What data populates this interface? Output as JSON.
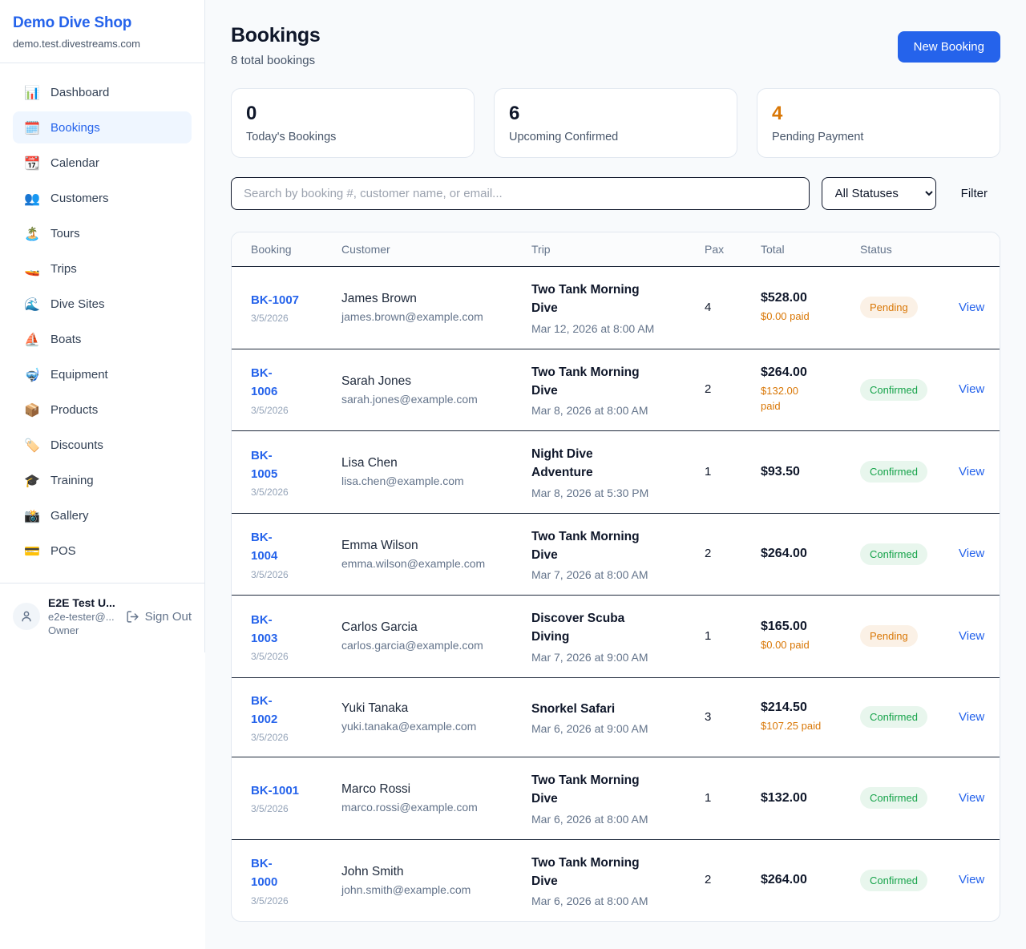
{
  "colors": {
    "accent_blue": "#2563eb",
    "pending_orange": "#d97706",
    "pending_badge_bg": "#fbf1e6",
    "confirmed_green": "#16a34a",
    "confirmed_badge_bg": "#e8f6ed",
    "main_background": "#f8fafc"
  },
  "sidebar": {
    "brand": {
      "name": "Demo Dive Shop",
      "domain": "demo.test.divestreams.com"
    },
    "items": [
      {
        "icon_name": "dashboard-icon",
        "icon": "📊",
        "label": "Dashboard",
        "active": false
      },
      {
        "icon_name": "bookings-icon",
        "icon": "🗓️",
        "label": "Bookings",
        "active": true
      },
      {
        "icon_name": "calendar-icon",
        "icon": "📆",
        "label": "Calendar",
        "active": false
      },
      {
        "icon_name": "customers-icon",
        "icon": "👥",
        "label": "Customers",
        "active": false
      },
      {
        "icon_name": "tours-icon",
        "icon": "🏝️",
        "label": "Tours",
        "active": false
      },
      {
        "icon_name": "trips-icon",
        "icon": "🚤",
        "label": "Trips",
        "active": false
      },
      {
        "icon_name": "dive-sites-icon",
        "icon": "🌊",
        "label": "Dive Sites",
        "active": false
      },
      {
        "icon_name": "boats-icon",
        "icon": "⛵",
        "label": "Boats",
        "active": false
      },
      {
        "icon_name": "equipment-icon",
        "icon": "🤿",
        "label": "Equipment",
        "active": false
      },
      {
        "icon_name": "products-icon",
        "icon": "📦",
        "label": "Products",
        "active": false
      },
      {
        "icon_name": "discounts-icon",
        "icon": "🏷️",
        "label": "Discounts",
        "active": false
      },
      {
        "icon_name": "training-icon",
        "icon": "🎓",
        "label": "Training",
        "active": false
      },
      {
        "icon_name": "gallery-icon",
        "icon": "📸",
        "label": "Gallery",
        "active": false
      },
      {
        "icon_name": "pos-icon",
        "icon": "💳",
        "label": "POS",
        "active": false
      }
    ],
    "user": {
      "name": "E2E Test U...",
      "email": "e2e-tester@...",
      "role": "Owner",
      "sign_out_label": "Sign Out"
    }
  },
  "header": {
    "title": "Bookings",
    "subtitle": "8 total bookings",
    "new_booking_label": "New Booking"
  },
  "stats": [
    {
      "value": "0",
      "label": "Today's Bookings",
      "highlight": false
    },
    {
      "value": "6",
      "label": "Upcoming Confirmed",
      "highlight": false
    },
    {
      "value": "4",
      "label": "Pending Payment",
      "highlight": true
    }
  ],
  "filters": {
    "search_placeholder": "Search by booking #, customer name, or email...",
    "status_selected": "All Statuses",
    "filter_label": "Filter"
  },
  "table": {
    "columns": [
      "Booking",
      "Customer",
      "Trip",
      "Pax",
      "Total",
      "Status",
      ""
    ],
    "rows": [
      {
        "id": "BK-1007",
        "id_display": "BK-1007",
        "date": "3/5/2026",
        "customer": "James Brown",
        "email": "james.brown@example.com",
        "trip": "Two Tank Morning Dive",
        "trip_datetime": "Mar 12, 2026 at 8:00 AM",
        "pax": "4",
        "total": "$528.00",
        "paid": "$0.00 paid",
        "status": "Pending",
        "view_label": "View"
      },
      {
        "id": "BK-1006",
        "id_display": "BK-\n1006",
        "date": "3/5/2026",
        "customer": "Sarah Jones",
        "email": "sarah.jones@example.com",
        "trip": "Two Tank Morning Dive",
        "trip_datetime": "Mar 8, 2026 at 8:00 AM",
        "pax": "2",
        "total": "$264.00",
        "paid": "$132.00\npaid",
        "status": "Confirmed",
        "view_label": "View"
      },
      {
        "id": "BK-1005",
        "id_display": "BK-\n1005",
        "date": "3/5/2026",
        "customer": "Lisa Chen",
        "email": "lisa.chen@example.com",
        "trip": "Night Dive Adventure",
        "trip_datetime": "Mar 8, 2026 at 5:30 PM",
        "pax": "1",
        "total": "$93.50",
        "paid": "",
        "status": "Confirmed",
        "view_label": "View"
      },
      {
        "id": "BK-1004",
        "id_display": "BK-\n1004",
        "date": "3/5/2026",
        "customer": "Emma Wilson",
        "email": "emma.wilson@example.com",
        "trip": "Two Tank Morning Dive",
        "trip_datetime": "Mar 7, 2026 at 8:00 AM",
        "pax": "2",
        "total": "$264.00",
        "paid": "",
        "status": "Confirmed",
        "view_label": "View"
      },
      {
        "id": "BK-1003",
        "id_display": "BK-\n1003",
        "date": "3/5/2026",
        "customer": "Carlos Garcia",
        "email": "carlos.garcia@example.com",
        "trip": "Discover Scuba Diving",
        "trip_datetime": "Mar 7, 2026 at 9:00 AM",
        "pax": "1",
        "total": "$165.00",
        "paid": "$0.00 paid",
        "status": "Pending",
        "view_label": "View"
      },
      {
        "id": "BK-1002",
        "id_display": "BK-\n1002",
        "date": "3/5/2026",
        "customer": "Yuki Tanaka",
        "email": "yuki.tanaka@example.com",
        "trip": "Snorkel Safari",
        "trip_datetime": "Mar 6, 2026 at 9:00 AM",
        "pax": "3",
        "total": "$214.50",
        "paid": "$107.25 paid",
        "status": "Confirmed",
        "view_label": "View"
      },
      {
        "id": "BK-1001",
        "id_display": "BK-1001",
        "date": "3/5/2026",
        "customer": "Marco Rossi",
        "email": "marco.rossi@example.com",
        "trip": "Two Tank Morning Dive",
        "trip_datetime": "Mar 6, 2026 at 8:00 AM",
        "pax": "1",
        "total": "$132.00",
        "paid": "",
        "status": "Confirmed",
        "view_label": "View"
      },
      {
        "id": "BK-1000",
        "id_display": "BK-\n1000",
        "date": "3/5/2026",
        "customer": "John Smith",
        "email": "john.smith@example.com",
        "trip": "Two Tank Morning Dive",
        "trip_datetime": "Mar 6, 2026 at 8:00 AM",
        "pax": "2",
        "total": "$264.00",
        "paid": "",
        "status": "Confirmed",
        "view_label": "View"
      }
    ]
  }
}
